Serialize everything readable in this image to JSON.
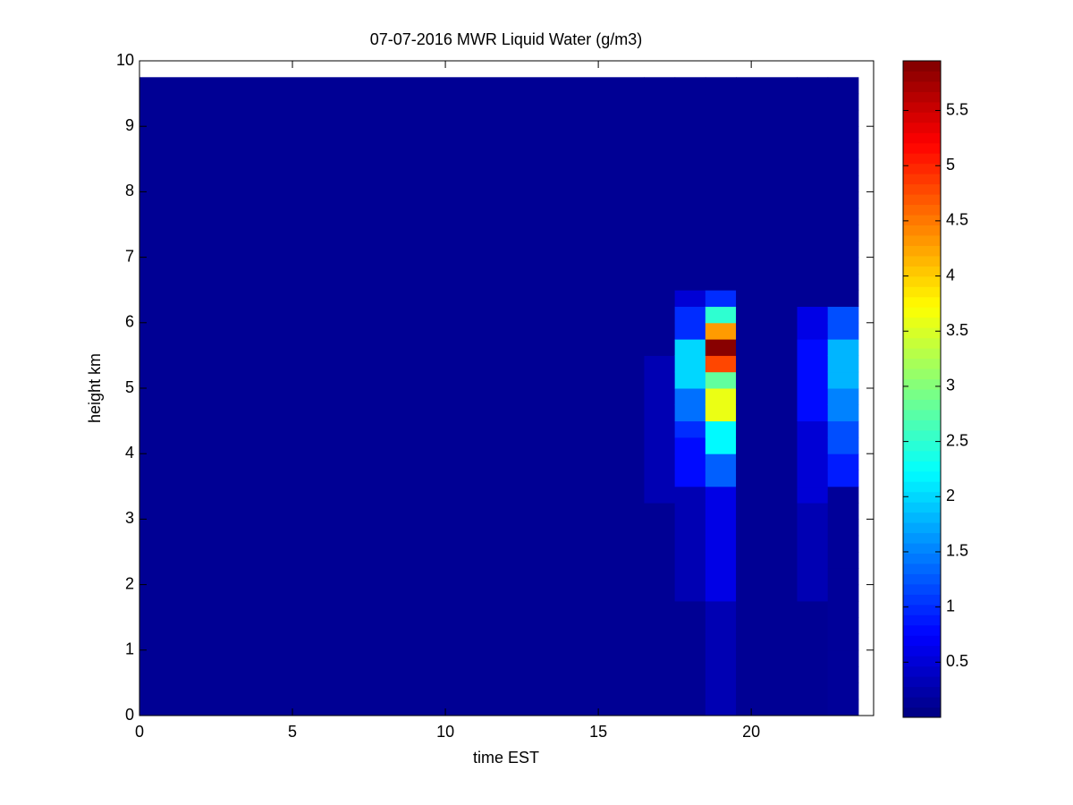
{
  "chart_data": {
    "type": "heatmap",
    "title": "07-07-2016 MWR Liquid Water (g/m3)",
    "xlabel": "time EST",
    "ylabel": "height km",
    "x": [
      0,
      16.5,
      17.5,
      18.5,
      19.5,
      21.5,
      22.5,
      23.5
    ],
    "y": [
      0,
      0.25,
      0.5,
      0.75,
      1,
      1.25,
      1.5,
      1.75,
      2,
      2.25,
      2.5,
      2.75,
      3,
      3.25,
      3.5,
      3.75,
      4,
      4.25,
      4.5,
      4.75,
      5,
      5.25,
      5.5,
      5.75,
      6,
      6.25,
      6.5,
      6.75,
      7,
      7.25,
      7.5,
      7.75,
      8,
      8.25,
      8.5,
      8.75,
      9,
      9.25,
      9.5,
      9.75
    ],
    "z": [
      [
        0.12,
        0.12,
        0.12,
        0.12,
        0.12,
        0.12,
        0.12,
        0.12,
        0.12,
        0.12,
        0.12,
        0.12,
        0.12,
        0.12,
        0.12,
        0.12,
        0.12,
        0.12,
        0.12,
        0.12,
        0.12,
        0.12,
        0.12,
        0.12,
        0.12,
        0.12,
        0.12,
        0.12,
        0.12,
        0.12,
        0.12,
        0.12,
        0.12,
        0.12,
        0.12,
        0.12,
        0.12,
        0.12,
        0.12
      ],
      [
        0.12,
        0.12,
        0.12,
        0.12,
        0.12,
        0.12,
        0.12,
        0.12,
        0.12,
        0.12,
        0.12,
        0.12,
        0.12,
        0.3,
        0.3,
        0.3,
        0.3,
        0.3,
        0.3,
        0.3,
        0.3,
        0.3,
        0.12,
        0.12,
        0.12,
        0.12,
        0.12,
        0.12,
        0.12,
        0.12,
        0.12,
        0.12,
        0.12,
        0.12,
        0.12,
        0.12,
        0.12,
        0.12,
        0.12
      ],
      [
        0.12,
        0.12,
        0.12,
        0.12,
        0.12,
        0.12,
        0.12,
        0.3,
        0.3,
        0.3,
        0.3,
        0.3,
        0.3,
        0.3,
        0.8,
        0.8,
        0.8,
        1.0,
        1.4,
        1.4,
        2.0,
        2.0,
        2.0,
        1.0,
        1.0,
        0.5,
        0.12,
        0.12,
        0.12,
        0.12,
        0.12,
        0.12,
        0.12,
        0.12,
        0.12,
        0.12,
        0.12,
        0.12,
        0.12
      ],
      [
        0.3,
        0.3,
        0.3,
        0.3,
        0.3,
        0.3,
        0.3,
        0.6,
        0.6,
        0.6,
        0.6,
        0.6,
        0.6,
        0.6,
        1.3,
        1.3,
        2.2,
        2.2,
        3.6,
        3.6,
        2.8,
        4.8,
        5.9,
        4.3,
        2.5,
        1.0,
        0.12,
        0.12,
        0.12,
        0.12,
        0.12,
        0.12,
        0.12,
        0.12,
        0.12,
        0.12,
        0.12,
        0.12,
        0.12
      ],
      [
        0.12,
        0.12,
        0.12,
        0.12,
        0.12,
        0.12,
        0.12,
        0.12,
        0.12,
        0.12,
        0.12,
        0.12,
        0.12,
        0.12,
        0.12,
        0.12,
        0.12,
        0.12,
        0.12,
        0.12,
        0.12,
        0.12,
        0.12,
        0.12,
        0.12,
        0.12,
        0.12,
        0.12,
        0.12,
        0.12,
        0.12,
        0.12,
        0.12,
        0.12,
        0.12,
        0.12,
        0.12,
        0.12,
        0.12
      ],
      [
        0.12,
        0.12,
        0.12,
        0.12,
        0.12,
        0.12,
        0.12,
        0.3,
        0.3,
        0.3,
        0.3,
        0.3,
        0.3,
        0.5,
        0.5,
        0.5,
        0.5,
        0.5,
        0.8,
        0.8,
        0.8,
        0.8,
        0.8,
        0.6,
        0.6,
        0.12,
        0.12,
        0.12,
        0.12,
        0.12,
        0.12,
        0.12,
        0.12,
        0.12,
        0.12,
        0.12,
        0.12,
        0.12,
        0.12
      ],
      [
        0.15,
        0.15,
        0.15,
        0.15,
        0.15,
        0.15,
        0.15,
        0.15,
        0.15,
        0.15,
        0.15,
        0.15,
        0.15,
        0.15,
        0.9,
        0.9,
        1.2,
        1.2,
        1.5,
        1.5,
        1.8,
        1.8,
        1.8,
        1.2,
        1.2,
        0.12,
        0.12,
        0.12,
        0.12,
        0.12,
        0.12,
        0.12,
        0.12,
        0.12,
        0.12,
        0.12,
        0.12,
        0.12,
        0.12
      ]
    ],
    "xlim": [
      0,
      24
    ],
    "xticks": [
      0,
      5,
      10,
      15,
      20
    ],
    "ylim": [
      0,
      10
    ],
    "yticks": [
      0,
      1,
      2,
      3,
      4,
      5,
      6,
      7,
      8,
      9,
      10
    ],
    "colormap": "jet",
    "clim": [
      0,
      5.95
    ],
    "cticks": [
      0.5,
      1,
      1.5,
      2,
      2.5,
      3,
      3.5,
      4,
      4.5,
      5,
      5.5
    ]
  }
}
